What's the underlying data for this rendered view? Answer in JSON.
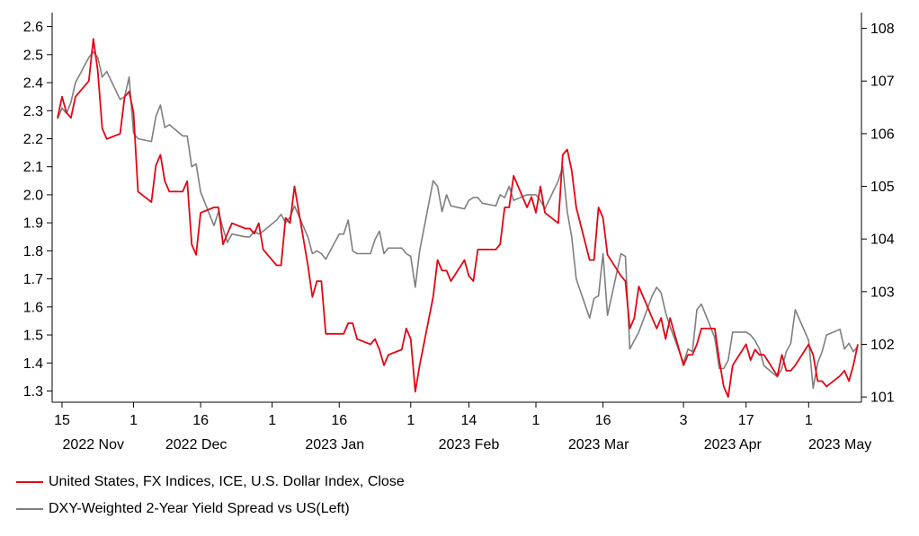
{
  "chart_data": {
    "type": "line",
    "title": "",
    "x_axis": {
      "day_ticks": [
        "15",
        "1",
        "16",
        "1",
        "16",
        "1",
        "14",
        "1",
        "16",
        "3",
        "17",
        "1"
      ],
      "month_labels": [
        "2022 Nov",
        "2022 Dec",
        "2023 Jan",
        "2023 Feb",
        "2023 Mar",
        "2023 Apr",
        "2023 May"
      ],
      "range": [
        "2022-11-14",
        "2023-05-12"
      ]
    },
    "y_left": {
      "ticks": [
        "2.6",
        "2.5",
        "2.4",
        "2.3",
        "2.2",
        "2.1",
        "2.0",
        "1.9",
        "1.8",
        "1.7",
        "1.6",
        "1.5",
        "1.4",
        "1.3"
      ],
      "range": [
        1.26,
        2.65
      ]
    },
    "y_right": {
      "ticks": [
        "108",
        "107",
        "106",
        "105",
        "104",
        "103",
        "102",
        "101"
      ],
      "range": [
        100.9,
        108.3
      ]
    },
    "series": [
      {
        "name": "United States, FX Indices, ICE, U.S. Dollar Index, Close",
        "axis": "right",
        "color": "#e30613",
        "points": [
          [
            "2022-11-14",
            106.3
          ],
          [
            "2022-11-15",
            106.7
          ],
          [
            "2022-11-16",
            106.4
          ],
          [
            "2022-11-17",
            106.3
          ],
          [
            "2022-11-18",
            106.7
          ],
          [
            "2022-11-21",
            107.0
          ],
          [
            "2022-11-22",
            107.8
          ],
          [
            "2022-11-23",
            107.2
          ],
          [
            "2022-11-24",
            106.1
          ],
          [
            "2022-11-25",
            105.9
          ],
          [
            "2022-11-28",
            106.0
          ],
          [
            "2022-11-29",
            106.7
          ],
          [
            "2022-11-30",
            106.8
          ],
          [
            "2022-12-01",
            106.4
          ],
          [
            "2022-12-02",
            104.9
          ],
          [
            "2022-12-05",
            104.7
          ],
          [
            "2022-12-06",
            105.4
          ],
          [
            "2022-12-07",
            105.6
          ],
          [
            "2022-12-08",
            105.1
          ],
          [
            "2022-12-09",
            104.9
          ],
          [
            "2022-12-12",
            104.9
          ],
          [
            "2022-12-13",
            105.1
          ],
          [
            "2022-12-14",
            103.9
          ],
          [
            "2022-12-15",
            103.7
          ],
          [
            "2022-12-16",
            104.5
          ],
          [
            "2022-12-19",
            104.6
          ],
          [
            "2022-12-20",
            104.6
          ],
          [
            "2022-12-21",
            103.9
          ],
          [
            "2022-12-22",
            104.1
          ],
          [
            "2022-12-23",
            104.3
          ],
          [
            "2022-12-26",
            104.2
          ],
          [
            "2022-12-27",
            104.2
          ],
          [
            "2022-12-28",
            104.1
          ],
          [
            "2022-12-29",
            104.3
          ],
          [
            "2022-12-30",
            103.8
          ],
          [
            "2023-01-02",
            103.5
          ],
          [
            "2023-01-03",
            103.5
          ],
          [
            "2023-01-04",
            104.4
          ],
          [
            "2023-01-05",
            104.3
          ],
          [
            "2023-01-06",
            105.0
          ],
          [
            "2023-01-09",
            103.5
          ],
          [
            "2023-01-10",
            102.9
          ],
          [
            "2023-01-11",
            103.2
          ],
          [
            "2023-01-12",
            103.2
          ],
          [
            "2023-01-13",
            102.2
          ],
          [
            "2023-01-16",
            102.2
          ],
          [
            "2023-01-17",
            102.2
          ],
          [
            "2023-01-18",
            102.4
          ],
          [
            "2023-01-19",
            102.4
          ],
          [
            "2023-01-20",
            102.1
          ],
          [
            "2023-01-23",
            102.0
          ],
          [
            "2023-01-24",
            102.1
          ],
          [
            "2023-01-25",
            101.9
          ],
          [
            "2023-01-26",
            101.6
          ],
          [
            "2023-01-27",
            101.8
          ],
          [
            "2023-01-30",
            101.9
          ],
          [
            "2023-01-31",
            102.3
          ],
          [
            "2023-02-01",
            102.1
          ],
          [
            "2023-02-02",
            101.1
          ],
          [
            "2023-02-03",
            101.6
          ],
          [
            "2023-02-06",
            102.9
          ],
          [
            "2023-02-07",
            103.6
          ],
          [
            "2023-02-08",
            103.4
          ],
          [
            "2023-02-09",
            103.4
          ],
          [
            "2023-02-10",
            103.2
          ],
          [
            "2023-02-13",
            103.6
          ],
          [
            "2023-02-14",
            103.3
          ],
          [
            "2023-02-15",
            103.2
          ],
          [
            "2023-02-16",
            103.8
          ],
          [
            "2023-02-17",
            103.8
          ],
          [
            "2023-02-20",
            103.8
          ],
          [
            "2023-02-21",
            103.9
          ],
          [
            "2023-02-22",
            104.6
          ],
          [
            "2023-02-23",
            104.6
          ],
          [
            "2023-02-24",
            105.2
          ],
          [
            "2023-02-27",
            104.6
          ],
          [
            "2023-02-28",
            104.8
          ],
          [
            "2023-03-01",
            104.5
          ],
          [
            "2023-03-02",
            105.0
          ],
          [
            "2023-03-03",
            104.5
          ],
          [
            "2023-03-06",
            104.3
          ],
          [
            "2023-03-07",
            105.6
          ],
          [
            "2023-03-08",
            105.7
          ],
          [
            "2023-03-09",
            105.3
          ],
          [
            "2023-03-10",
            104.6
          ],
          [
            "2023-03-13",
            103.6
          ],
          [
            "2023-03-14",
            103.6
          ],
          [
            "2023-03-15",
            104.6
          ],
          [
            "2023-03-16",
            104.4
          ],
          [
            "2023-03-17",
            103.7
          ],
          [
            "2023-03-20",
            103.3
          ],
          [
            "2023-03-21",
            103.2
          ],
          [
            "2023-03-22",
            102.3
          ],
          [
            "2023-03-23",
            102.5
          ],
          [
            "2023-03-24",
            103.1
          ],
          [
            "2023-03-27",
            102.5
          ],
          [
            "2023-03-28",
            102.3
          ],
          [
            "2023-03-29",
            102.5
          ],
          [
            "2023-03-30",
            102.1
          ],
          [
            "2023-03-31",
            102.5
          ],
          [
            "2023-04-03",
            101.6
          ],
          [
            "2023-04-04",
            101.8
          ],
          [
            "2023-04-05",
            101.8
          ],
          [
            "2023-04-06",
            102.0
          ],
          [
            "2023-04-07",
            102.3
          ],
          [
            "2023-04-10",
            102.3
          ],
          [
            "2023-04-11",
            101.7
          ],
          [
            "2023-04-12",
            101.2
          ],
          [
            "2023-04-13",
            101.0
          ],
          [
            "2023-04-14",
            101.6
          ],
          [
            "2023-04-17",
            102.0
          ],
          [
            "2023-04-18",
            101.7
          ],
          [
            "2023-04-19",
            101.9
          ],
          [
            "2023-04-20",
            101.8
          ],
          [
            "2023-04-21",
            101.8
          ],
          [
            "2023-04-24",
            101.4
          ],
          [
            "2023-04-25",
            101.8
          ],
          [
            "2023-04-26",
            101.5
          ],
          [
            "2023-04-27",
            101.5
          ],
          [
            "2023-04-28",
            101.6
          ],
          [
            "2023-05-01",
            102.0
          ],
          [
            "2023-05-02",
            101.8
          ],
          [
            "2023-05-03",
            101.3
          ],
          [
            "2023-05-04",
            101.3
          ],
          [
            "2023-05-05",
            101.2
          ],
          [
            "2023-05-08",
            101.4
          ],
          [
            "2023-05-09",
            101.5
          ],
          [
            "2023-05-10",
            101.3
          ],
          [
            "2023-05-11",
            101.6
          ],
          [
            "2023-05-12",
            102.0
          ]
        ]
      },
      {
        "name": "DXY-Weighted 2-Year Yield Spread vs US(Left)",
        "axis": "left",
        "color": "#7f7f7f",
        "points": [
          [
            "2022-11-14",
            2.27
          ],
          [
            "2022-11-15",
            2.31
          ],
          [
            "2022-11-16",
            2.29
          ],
          [
            "2022-11-17",
            2.33
          ],
          [
            "2022-11-18",
            2.4
          ],
          [
            "2022-11-21",
            2.49
          ],
          [
            "2022-11-22",
            2.51
          ],
          [
            "2022-11-23",
            2.49
          ],
          [
            "2022-11-24",
            2.42
          ],
          [
            "2022-11-25",
            2.44
          ],
          [
            "2022-11-28",
            2.34
          ],
          [
            "2022-11-29",
            2.35
          ],
          [
            "2022-11-30",
            2.42
          ],
          [
            "2022-12-01",
            2.22
          ],
          [
            "2022-12-02",
            2.2
          ],
          [
            "2022-12-05",
            2.19
          ],
          [
            "2022-12-06",
            2.28
          ],
          [
            "2022-12-07",
            2.32
          ],
          [
            "2022-12-08",
            2.24
          ],
          [
            "2022-12-09",
            2.25
          ],
          [
            "2022-12-12",
            2.21
          ],
          [
            "2022-12-13",
            2.21
          ],
          [
            "2022-12-14",
            2.1
          ],
          [
            "2022-12-15",
            2.11
          ],
          [
            "2022-12-16",
            2.01
          ],
          [
            "2022-12-19",
            1.89
          ],
          [
            "2022-12-20",
            1.94
          ],
          [
            "2022-12-21",
            1.88
          ],
          [
            "2022-12-22",
            1.83
          ],
          [
            "2022-12-23",
            1.86
          ],
          [
            "2022-12-26",
            1.85
          ],
          [
            "2022-12-27",
            1.85
          ],
          [
            "2022-12-28",
            1.87
          ],
          [
            "2022-12-29",
            1.86
          ],
          [
            "2022-12-30",
            1.87
          ],
          [
            "2023-01-02",
            1.91
          ],
          [
            "2023-01-03",
            1.93
          ],
          [
            "2023-01-04",
            1.9
          ],
          [
            "2023-01-05",
            1.92
          ],
          [
            "2023-01-06",
            1.96
          ],
          [
            "2023-01-09",
            1.85
          ],
          [
            "2023-01-10",
            1.79
          ],
          [
            "2023-01-11",
            1.8
          ],
          [
            "2023-01-12",
            1.79
          ],
          [
            "2023-01-13",
            1.77
          ],
          [
            "2023-01-16",
            1.86
          ],
          [
            "2023-01-17",
            1.86
          ],
          [
            "2023-01-18",
            1.91
          ],
          [
            "2023-01-19",
            1.8
          ],
          [
            "2023-01-20",
            1.79
          ],
          [
            "2023-01-23",
            1.79
          ],
          [
            "2023-01-24",
            1.84
          ],
          [
            "2023-01-25",
            1.87
          ],
          [
            "2023-01-26",
            1.79
          ],
          [
            "2023-01-27",
            1.81
          ],
          [
            "2023-01-30",
            1.81
          ],
          [
            "2023-01-31",
            1.79
          ],
          [
            "2023-02-01",
            1.78
          ],
          [
            "2023-02-02",
            1.67
          ],
          [
            "2023-02-03",
            1.8
          ],
          [
            "2023-02-06",
            2.05
          ],
          [
            "2023-02-07",
            2.03
          ],
          [
            "2023-02-08",
            1.94
          ],
          [
            "2023-02-09",
            2.0
          ],
          [
            "2023-02-10",
            1.96
          ],
          [
            "2023-02-13",
            1.95
          ],
          [
            "2023-02-14",
            1.98
          ],
          [
            "2023-02-15",
            1.99
          ],
          [
            "2023-02-16",
            1.99
          ],
          [
            "2023-02-17",
            1.97
          ],
          [
            "2023-02-20",
            1.96
          ],
          [
            "2023-02-21",
            2.0
          ],
          [
            "2023-02-22",
            1.99
          ],
          [
            "2023-02-23",
            2.03
          ],
          [
            "2023-02-24",
            1.98
          ],
          [
            "2023-02-27",
            2.0
          ],
          [
            "2023-02-28",
            2.0
          ],
          [
            "2023-03-01",
            2.0
          ],
          [
            "2023-03-02",
            1.98
          ],
          [
            "2023-03-03",
            1.95
          ],
          [
            "2023-03-06",
            2.05
          ],
          [
            "2023-03-07",
            2.1
          ],
          [
            "2023-03-08",
            1.94
          ],
          [
            "2023-03-09",
            1.85
          ],
          [
            "2023-03-10",
            1.7
          ],
          [
            "2023-03-13",
            1.56
          ],
          [
            "2023-03-14",
            1.63
          ],
          [
            "2023-03-15",
            1.64
          ],
          [
            "2023-03-16",
            1.79
          ],
          [
            "2023-03-17",
            1.57
          ],
          [
            "2023-03-20",
            1.79
          ],
          [
            "2023-03-21",
            1.78
          ],
          [
            "2023-03-22",
            1.45
          ],
          [
            "2023-03-23",
            1.48
          ],
          [
            "2023-03-24",
            1.51
          ],
          [
            "2023-03-27",
            1.64
          ],
          [
            "2023-03-28",
            1.67
          ],
          [
            "2023-03-29",
            1.65
          ],
          [
            "2023-03-30",
            1.58
          ],
          [
            "2023-03-31",
            1.53
          ],
          [
            "2023-04-03",
            1.4
          ],
          [
            "2023-04-04",
            1.45
          ],
          [
            "2023-04-05",
            1.44
          ],
          [
            "2023-04-06",
            1.59
          ],
          [
            "2023-04-07",
            1.61
          ],
          [
            "2023-04-10",
            1.49
          ],
          [
            "2023-04-11",
            1.38
          ],
          [
            "2023-04-12",
            1.38
          ],
          [
            "2023-04-13",
            1.41
          ],
          [
            "2023-04-14",
            1.51
          ],
          [
            "2023-04-17",
            1.51
          ],
          [
            "2023-04-18",
            1.5
          ],
          [
            "2023-04-19",
            1.48
          ],
          [
            "2023-04-20",
            1.45
          ],
          [
            "2023-04-21",
            1.39
          ],
          [
            "2023-04-24",
            1.35
          ],
          [
            "2023-04-25",
            1.38
          ],
          [
            "2023-04-26",
            1.44
          ],
          [
            "2023-04-27",
            1.47
          ],
          [
            "2023-04-28",
            1.59
          ],
          [
            "2023-05-01",
            1.48
          ],
          [
            "2023-05-02",
            1.31
          ],
          [
            "2023-05-03",
            1.4
          ],
          [
            "2023-05-04",
            1.44
          ],
          [
            "2023-05-05",
            1.5
          ],
          [
            "2023-05-08",
            1.52
          ],
          [
            "2023-05-09",
            1.45
          ],
          [
            "2023-05-10",
            1.47
          ],
          [
            "2023-05-11",
            1.44
          ],
          [
            "2023-05-12",
            1.46
          ]
        ]
      }
    ]
  }
}
